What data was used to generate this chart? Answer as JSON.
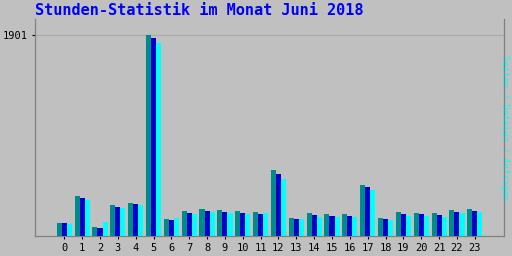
{
  "title": "Stunden-Statistik im Monat Juni 2018",
  "ylabel_right": "Seiten / Dateien / Anfragen",
  "ytick_label": "1901",
  "categories": [
    0,
    1,
    2,
    3,
    4,
    5,
    6,
    7,
    8,
    9,
    10,
    11,
    12,
    13,
    14,
    15,
    16,
    17,
    18,
    19,
    20,
    21,
    22,
    23
  ],
  "seiten": [
    120,
    370,
    80,
    290,
    310,
    1901,
    160,
    230,
    250,
    240,
    230,
    220,
    620,
    170,
    210,
    200,
    200,
    480,
    170,
    220,
    215,
    210,
    240,
    250
  ],
  "dateien": [
    115,
    355,
    75,
    275,
    300,
    1870,
    150,
    215,
    235,
    225,
    215,
    205,
    580,
    160,
    195,
    185,
    190,
    460,
    160,
    205,
    200,
    195,
    225,
    235
  ],
  "anfragen": [
    110,
    340,
    130,
    260,
    285,
    1820,
    165,
    200,
    220,
    210,
    200,
    215,
    540,
    155,
    180,
    175,
    175,
    430,
    150,
    190,
    185,
    180,
    210,
    220
  ],
  "bar_color_seiten": "#008B8B",
  "bar_color_dateien": "#0000CD",
  "bar_color_anfragen": "#00FFFF",
  "title_color": "#0000FF",
  "ylabel_right_color": "#00FFFF",
  "background_color": "#C0C0C0",
  "plot_bg_color": "#C0C0C0",
  "grid_color": "#AAAAAA",
  "title_fontsize": 11,
  "tick_fontsize": 7.5
}
